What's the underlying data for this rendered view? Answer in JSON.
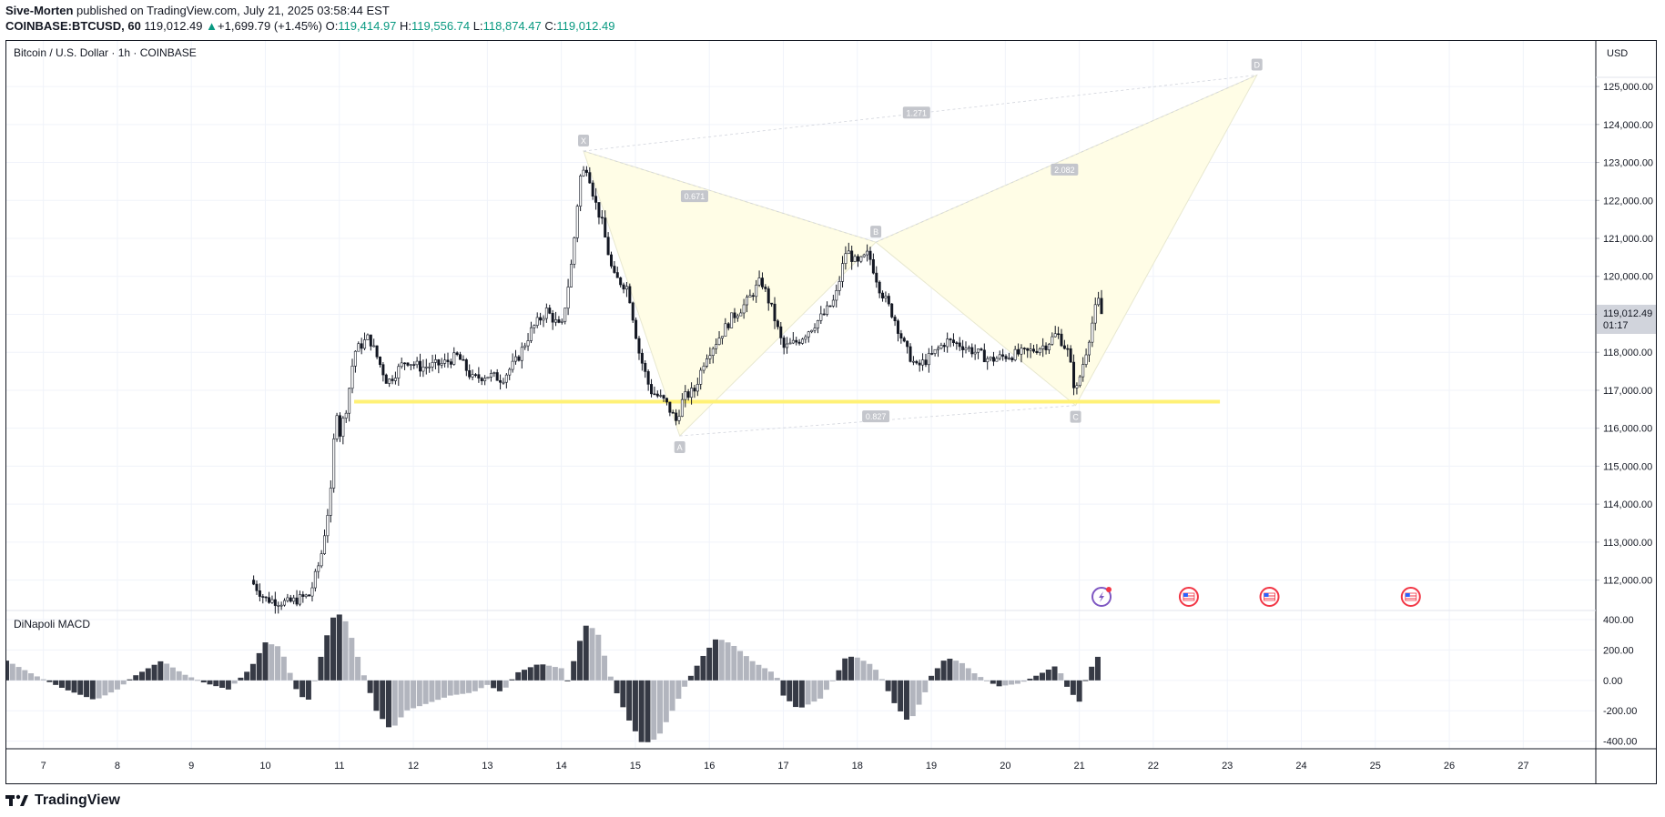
{
  "header": {
    "author": "Sive-Morten",
    "published": "published on TradingView.com, July 21, 2025 03:58:44 EST",
    "symbol": "COINBASE:BTCUSD, 60",
    "last": "119,012.49",
    "change_arrow": "▲",
    "change": "+1,699.79 (+1.45%)",
    "o_label": "O:",
    "o_val": "119,414.97",
    "h_label": "H:",
    "h_val": "119,556.74",
    "l_label": "L:",
    "l_val": "118,874.47",
    "c_label": "C:",
    "c_val": "119,012.49"
  },
  "footer": {
    "logo_text": "TradingView",
    "logo_icon": "tradingview-logo-icon"
  },
  "chart_data": {
    "type": "candlestick",
    "title": "Bitcoin / U.S. Dollar · 1h · COINBASE",
    "currency": "USD",
    "price_label": "119,012.49",
    "countdown": "01:17",
    "ylim": [
      111200,
      126200
    ],
    "y_ticks": [
      112000,
      113000,
      114000,
      115000,
      116000,
      117000,
      118000,
      119000,
      120000,
      121000,
      122000,
      123000,
      124000,
      125000
    ],
    "y_tick_labels": [
      "112,000.00",
      "113,000.00",
      "114,000.00",
      "115,000.00",
      "116,000.00",
      "117,000.00",
      "118,000.00",
      "119,000.00",
      "120,000.00",
      "121,000.00",
      "122,000.00",
      "123,000.00",
      "124,000.00",
      "125,000.00"
    ],
    "x_ticks": [
      7,
      8,
      9,
      10,
      11,
      12,
      13,
      14,
      15,
      16,
      17,
      18,
      19,
      20,
      21,
      22,
      23,
      24,
      25,
      26,
      27
    ],
    "x_tick_labels": [
      "7",
      "8",
      "9",
      "10",
      "11",
      "12",
      "13",
      "14",
      "15",
      "16",
      "17",
      "18",
      "19",
      "20",
      "21",
      "22",
      "23",
      "24",
      "25",
      "26",
      "27"
    ],
    "xlim": [
      6.5,
      27.98
    ],
    "price_path": [
      [
        9.8,
        112000
      ],
      [
        10.0,
        111500
      ],
      [
        10.3,
        111400
      ],
      [
        10.6,
        111600
      ],
      [
        10.75,
        112600
      ],
      [
        10.82,
        113500
      ],
      [
        10.9,
        114500
      ],
      [
        10.95,
        116800
      ],
      [
        11.0,
        115800
      ],
      [
        11.1,
        116600
      ],
      [
        11.2,
        118000
      ],
      [
        11.4,
        118400
      ],
      [
        11.65,
        117200
      ],
      [
        11.9,
        117800
      ],
      [
        12.1,
        117600
      ],
      [
        12.4,
        117700
      ],
      [
        12.6,
        117900
      ],
      [
        12.8,
        117300
      ],
      [
        13.0,
        117400
      ],
      [
        13.2,
        117300
      ],
      [
        13.4,
        117800
      ],
      [
        13.6,
        118600
      ],
      [
        13.8,
        119100
      ],
      [
        14.0,
        118600
      ],
      [
        14.15,
        120500
      ],
      [
        14.25,
        122600
      ],
      [
        14.35,
        122900
      ],
      [
        14.45,
        122000
      ],
      [
        14.55,
        121400
      ],
      [
        14.7,
        120000
      ],
      [
        14.9,
        119700
      ],
      [
        15.05,
        118000
      ],
      [
        15.2,
        117000
      ],
      [
        15.4,
        116700
      ],
      [
        15.55,
        116200
      ],
      [
        15.65,
        116800
      ],
      [
        15.8,
        117000
      ],
      [
        15.95,
        117900
      ],
      [
        16.1,
        118300
      ],
      [
        16.3,
        118900
      ],
      [
        16.5,
        119300
      ],
      [
        16.7,
        119900
      ],
      [
        16.85,
        119100
      ],
      [
        17.0,
        118100
      ],
      [
        17.2,
        118300
      ],
      [
        17.4,
        118700
      ],
      [
        17.55,
        119000
      ],
      [
        17.7,
        119400
      ],
      [
        17.85,
        120700
      ],
      [
        18.0,
        120300
      ],
      [
        18.15,
        120600
      ],
      [
        18.3,
        119700
      ],
      [
        18.5,
        118900
      ],
      [
        18.65,
        118100
      ],
      [
        18.8,
        117600
      ],
      [
        19.0,
        117900
      ],
      [
        19.2,
        118300
      ],
      [
        19.4,
        118200
      ],
      [
        19.6,
        118000
      ],
      [
        19.8,
        117800
      ],
      [
        20.0,
        117900
      ],
      [
        20.3,
        118000
      ],
      [
        20.55,
        118200
      ],
      [
        20.7,
        118500
      ],
      [
        20.85,
        118000
      ],
      [
        20.95,
        116900
      ],
      [
        21.0,
        117300
      ],
      [
        21.1,
        118100
      ],
      [
        21.2,
        119000
      ],
      [
        21.25,
        119400
      ],
      [
        21.3,
        119012
      ]
    ],
    "support_level": {
      "y": 116700,
      "x_start": 11.2,
      "x_end": 22.9
    },
    "pattern": {
      "points": [
        {
          "label": "X",
          "x": 14.3,
          "y": 123300
        },
        {
          "label": "A",
          "x": 15.6,
          "y": 115800
        },
        {
          "label": "B",
          "x": 18.25,
          "y": 120900
        },
        {
          "label": "C",
          "x": 20.95,
          "y": 116600
        },
        {
          "label": "D",
          "x": 23.4,
          "y": 125300
        }
      ],
      "ratios": [
        {
          "label": "0.671",
          "x": 15.8,
          "y": 122100
        },
        {
          "label": "0.827",
          "x": 18.25,
          "y": 116300
        },
        {
          "label": "1.271",
          "x": 18.8,
          "y": 124300
        },
        {
          "label": "2.082",
          "x": 20.8,
          "y": 122800
        }
      ]
    },
    "macd": {
      "name": "DiNapoli MACD",
      "ylim": [
        -450,
        460
      ],
      "y_ticks": [
        -400,
        -200,
        0,
        200,
        400
      ],
      "y_tick_labels": [
        "-400.00",
        "-200.00",
        "0.00",
        "200.00",
        "400.00"
      ],
      "profile": [
        [
          6.5,
          130
        ],
        [
          6.9,
          30
        ],
        [
          7.3,
          -60
        ],
        [
          7.7,
          -130
        ],
        [
          8.0,
          -60
        ],
        [
          8.2,
          20
        ],
        [
          8.6,
          130
        ],
        [
          8.9,
          40
        ],
        [
          9.2,
          -20
        ],
        [
          9.5,
          -60
        ],
        [
          9.8,
          80
        ],
        [
          10.0,
          250
        ],
        [
          10.2,
          220
        ],
        [
          10.45,
          -100
        ],
        [
          10.6,
          -130
        ],
        [
          10.8,
          250
        ],
        [
          10.95,
          460
        ],
        [
          11.1,
          380
        ],
        [
          11.3,
          80
        ],
        [
          11.5,
          -200
        ],
        [
          11.7,
          -330
        ],
        [
          11.9,
          -200
        ],
        [
          12.2,
          -150
        ],
        [
          12.5,
          -100
        ],
        [
          12.8,
          -80
        ],
        [
          13.0,
          -30
        ],
        [
          13.2,
          -80
        ],
        [
          13.4,
          50
        ],
        [
          13.7,
          110
        ],
        [
          14.0,
          80
        ],
        [
          14.1,
          -20
        ],
        [
          14.2,
          200
        ],
        [
          14.35,
          380
        ],
        [
          14.5,
          300
        ],
        [
          14.7,
          -30
        ],
        [
          14.9,
          -250
        ],
        [
          15.1,
          -420
        ],
        [
          15.3,
          -380
        ],
        [
          15.5,
          -200
        ],
        [
          15.7,
          -10
        ],
        [
          15.9,
          150
        ],
        [
          16.1,
          280
        ],
        [
          16.3,
          240
        ],
        [
          16.6,
          120
        ],
        [
          16.9,
          40
        ],
        [
          17.0,
          -100
        ],
        [
          17.2,
          -190
        ],
        [
          17.5,
          -120
        ],
        [
          17.7,
          20
        ],
        [
          17.85,
          160
        ],
        [
          18.0,
          150
        ],
        [
          18.2,
          100
        ],
        [
          18.3,
          40
        ],
        [
          18.5,
          -150
        ],
        [
          18.7,
          -280
        ],
        [
          18.9,
          -100
        ],
        [
          19.0,
          30
        ],
        [
          19.2,
          150
        ],
        [
          19.4,
          120
        ],
        [
          19.6,
          40
        ],
        [
          19.9,
          -40
        ],
        [
          20.2,
          -20
        ],
        [
          20.5,
          50
        ],
        [
          20.7,
          100
        ],
        [
          20.85,
          -60
        ],
        [
          21.0,
          -140
        ],
        [
          21.1,
          30
        ],
        [
          21.2,
          120
        ],
        [
          21.3,
          190
        ]
      ]
    },
    "event_markers": [
      {
        "kind": "flash-event-icon",
        "x": 21.3
      },
      {
        "kind": "us-flag-icon",
        "x": 22.48
      },
      {
        "kind": "us-flag-icon",
        "x": 23.57
      },
      {
        "kind": "us-flag-icon",
        "x": 25.48
      }
    ]
  }
}
